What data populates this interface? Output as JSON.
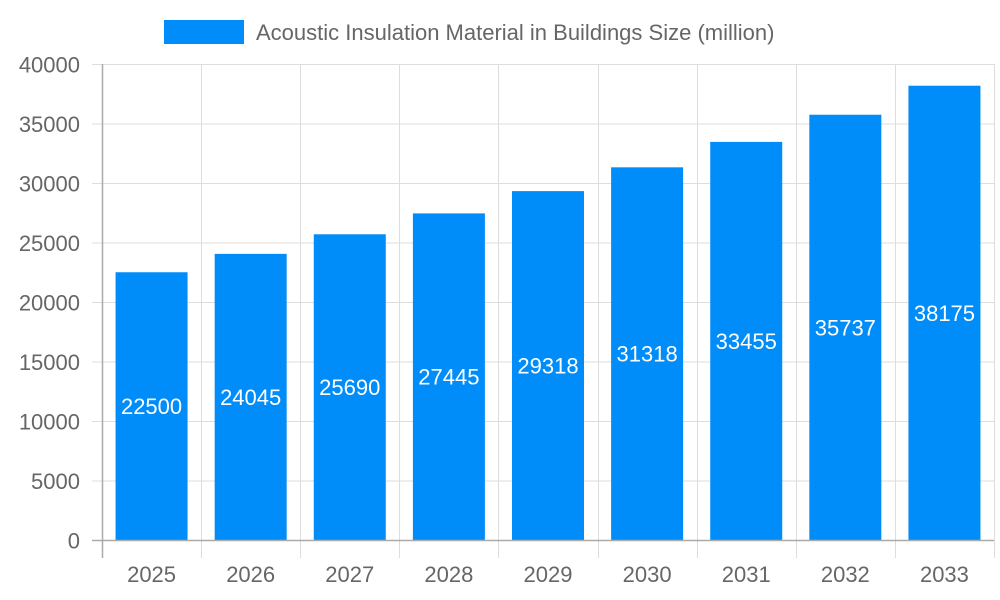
{
  "chart_data": {
    "type": "bar",
    "title": "",
    "xlabel": "",
    "ylabel": "",
    "categories": [
      "2025",
      "2026",
      "2027",
      "2028",
      "2029",
      "2030",
      "2031",
      "2032",
      "2033"
    ],
    "series": [
      {
        "name": "Acoustic Insulation Material in Buildings Size (million)",
        "values": [
          22500,
          24045,
          25690,
          27445,
          29318,
          31318,
          33455,
          35737,
          38175
        ],
        "color": "#008cf9"
      }
    ],
    "ylim": [
      0,
      40000
    ],
    "yticks": [
      0,
      5000,
      10000,
      15000,
      20000,
      25000,
      30000,
      35000,
      40000
    ],
    "grid": true,
    "legend": "top-center",
    "data_labels": true
  }
}
